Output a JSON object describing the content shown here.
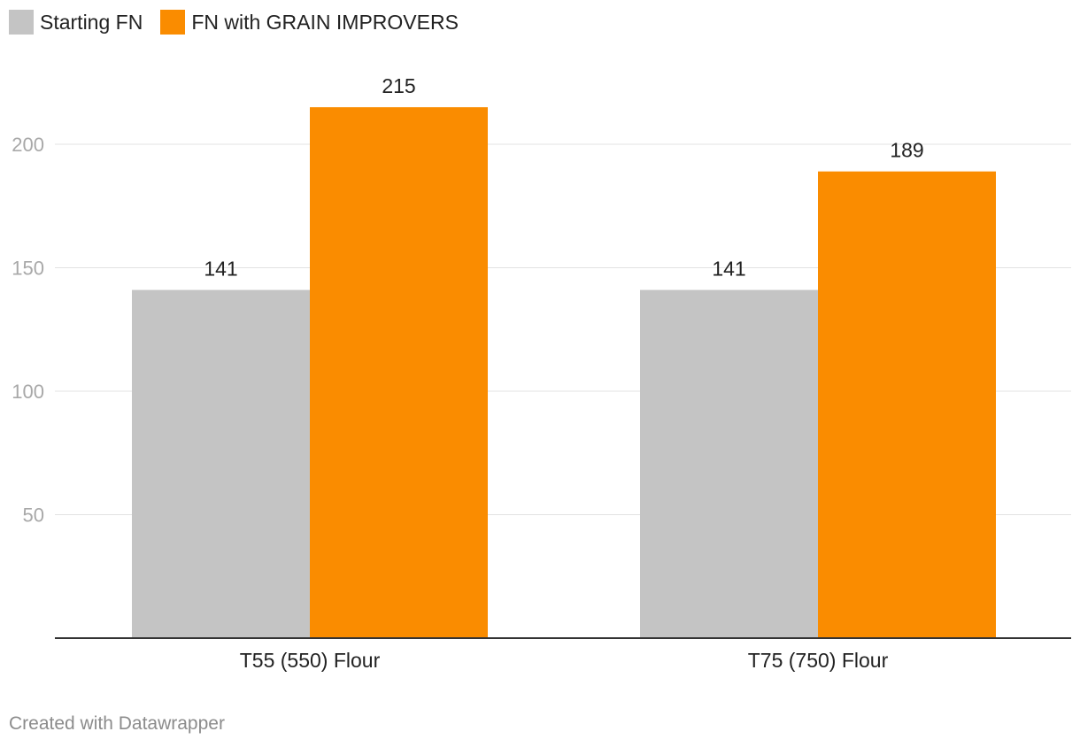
{
  "footer": "Created with Datawrapper",
  "chart_data": {
    "type": "bar",
    "categories": [
      "T55 (550) Flour",
      "T75 (750) Flour"
    ],
    "series": [
      {
        "name": "Starting FN",
        "color": "#c4c4c4",
        "values": [
          141,
          141
        ]
      },
      {
        "name": "FN with GRAIN IMPROVERS",
        "color": "#fa8c00",
        "values": [
          215,
          189
        ]
      }
    ],
    "yticks": [
      50,
      100,
      150,
      200
    ],
    "ylim": [
      0,
      200
    ],
    "grid": true,
    "legend_position": "top-left",
    "data_labels": true,
    "title": "",
    "xlabel": "",
    "ylabel": ""
  }
}
